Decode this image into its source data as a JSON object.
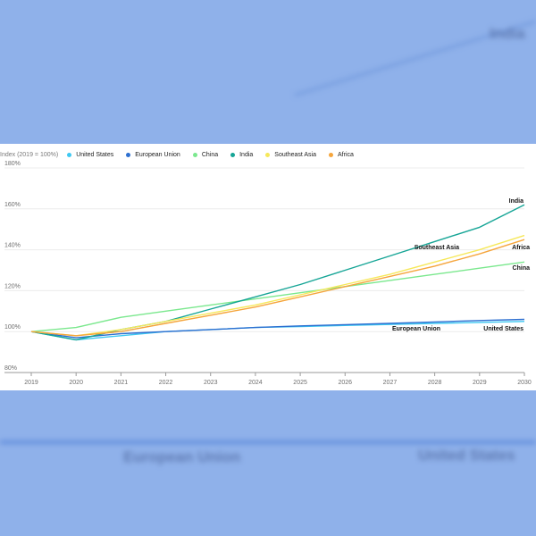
{
  "background_labels": {
    "india": "India",
    "european_union": "European Union",
    "united_states": "United States"
  },
  "chart_data": {
    "type": "line",
    "ylabel": "Index (2019 = 100%)",
    "ylim": [
      80,
      180
    ],
    "yticks": [
      80,
      100,
      120,
      140,
      160,
      180
    ],
    "ytick_labels": [
      "80%",
      "100%",
      "120%",
      "140%",
      "160%",
      "180%"
    ],
    "x": [
      2019,
      2020,
      2021,
      2022,
      2023,
      2024,
      2025,
      2026,
      2027,
      2028,
      2029,
      2030
    ],
    "legend_position": "top",
    "grid": true,
    "series": [
      {
        "name": "United States",
        "color": "#3ec8f2",
        "end_label": "United States",
        "values": [
          100,
          96,
          98,
          100,
          101,
          102,
          102.5,
          103,
          103.5,
          104,
          104.5,
          105
        ]
      },
      {
        "name": "European Union",
        "color": "#2d6fd0",
        "end_label": "European Union",
        "values": [
          100,
          97,
          99,
          100,
          101,
          102,
          102.8,
          103.4,
          104,
          104.7,
          105.4,
          106
        ]
      },
      {
        "name": "China",
        "color": "#7be88e",
        "end_label": "China",
        "values": [
          100,
          102,
          107,
          110,
          113,
          116,
          119,
          122,
          125,
          128,
          131,
          134
        ]
      },
      {
        "name": "India",
        "color": "#16a596",
        "end_label": "India",
        "values": [
          100,
          96,
          101,
          105,
          111,
          117,
          123,
          130,
          137,
          144,
          151,
          162
        ]
      },
      {
        "name": "Southeast Asia",
        "color": "#f6e85a",
        "end_label": "Southeast Asia",
        "values": [
          100,
          98,
          101,
          105,
          109,
          113,
          118,
          123,
          128,
          134,
          140,
          147
        ]
      },
      {
        "name": "Africa",
        "color": "#f5a53c",
        "end_label": "Africa",
        "values": [
          100,
          98,
          100,
          104,
          108,
          112,
          117,
          122,
          127,
          132,
          138,
          145
        ]
      }
    ]
  }
}
